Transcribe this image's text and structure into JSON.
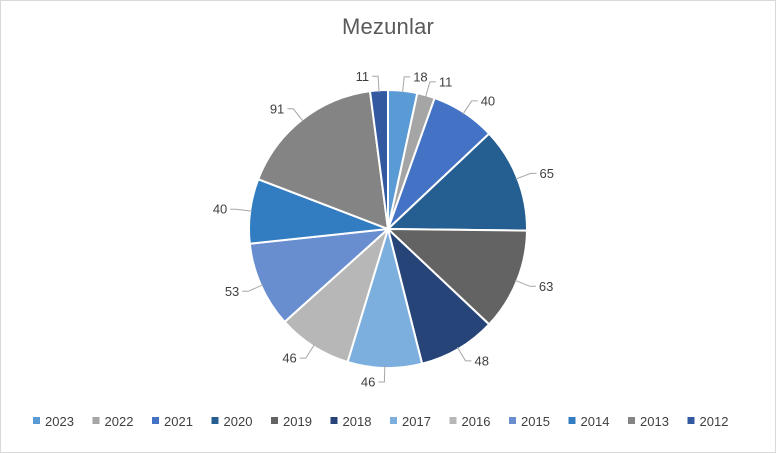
{
  "chart_data": {
    "type": "pie",
    "title": "Mezunlar",
    "categories": [
      "2023",
      "2022",
      "2021",
      "2020",
      "2019",
      "2018",
      "2017",
      "2016",
      "2015",
      "2014",
      "2013",
      "2012"
    ],
    "values": [
      18,
      11,
      40,
      65,
      63,
      48,
      46,
      46,
      53,
      40,
      91,
      11
    ],
    "colors": [
      "#5b9bd5",
      "#a5a5a5",
      "#4472c4",
      "#255e91",
      "#636363",
      "#264478",
      "#7cafdd",
      "#b7b7b7",
      "#698ed0",
      "#327dc2",
      "#848484",
      "#335aa1"
    ],
    "start_angle_deg": 0,
    "direction": "clockwise",
    "legend_position": "bottom",
    "data_labels": "outside-with-leader-lines"
  }
}
